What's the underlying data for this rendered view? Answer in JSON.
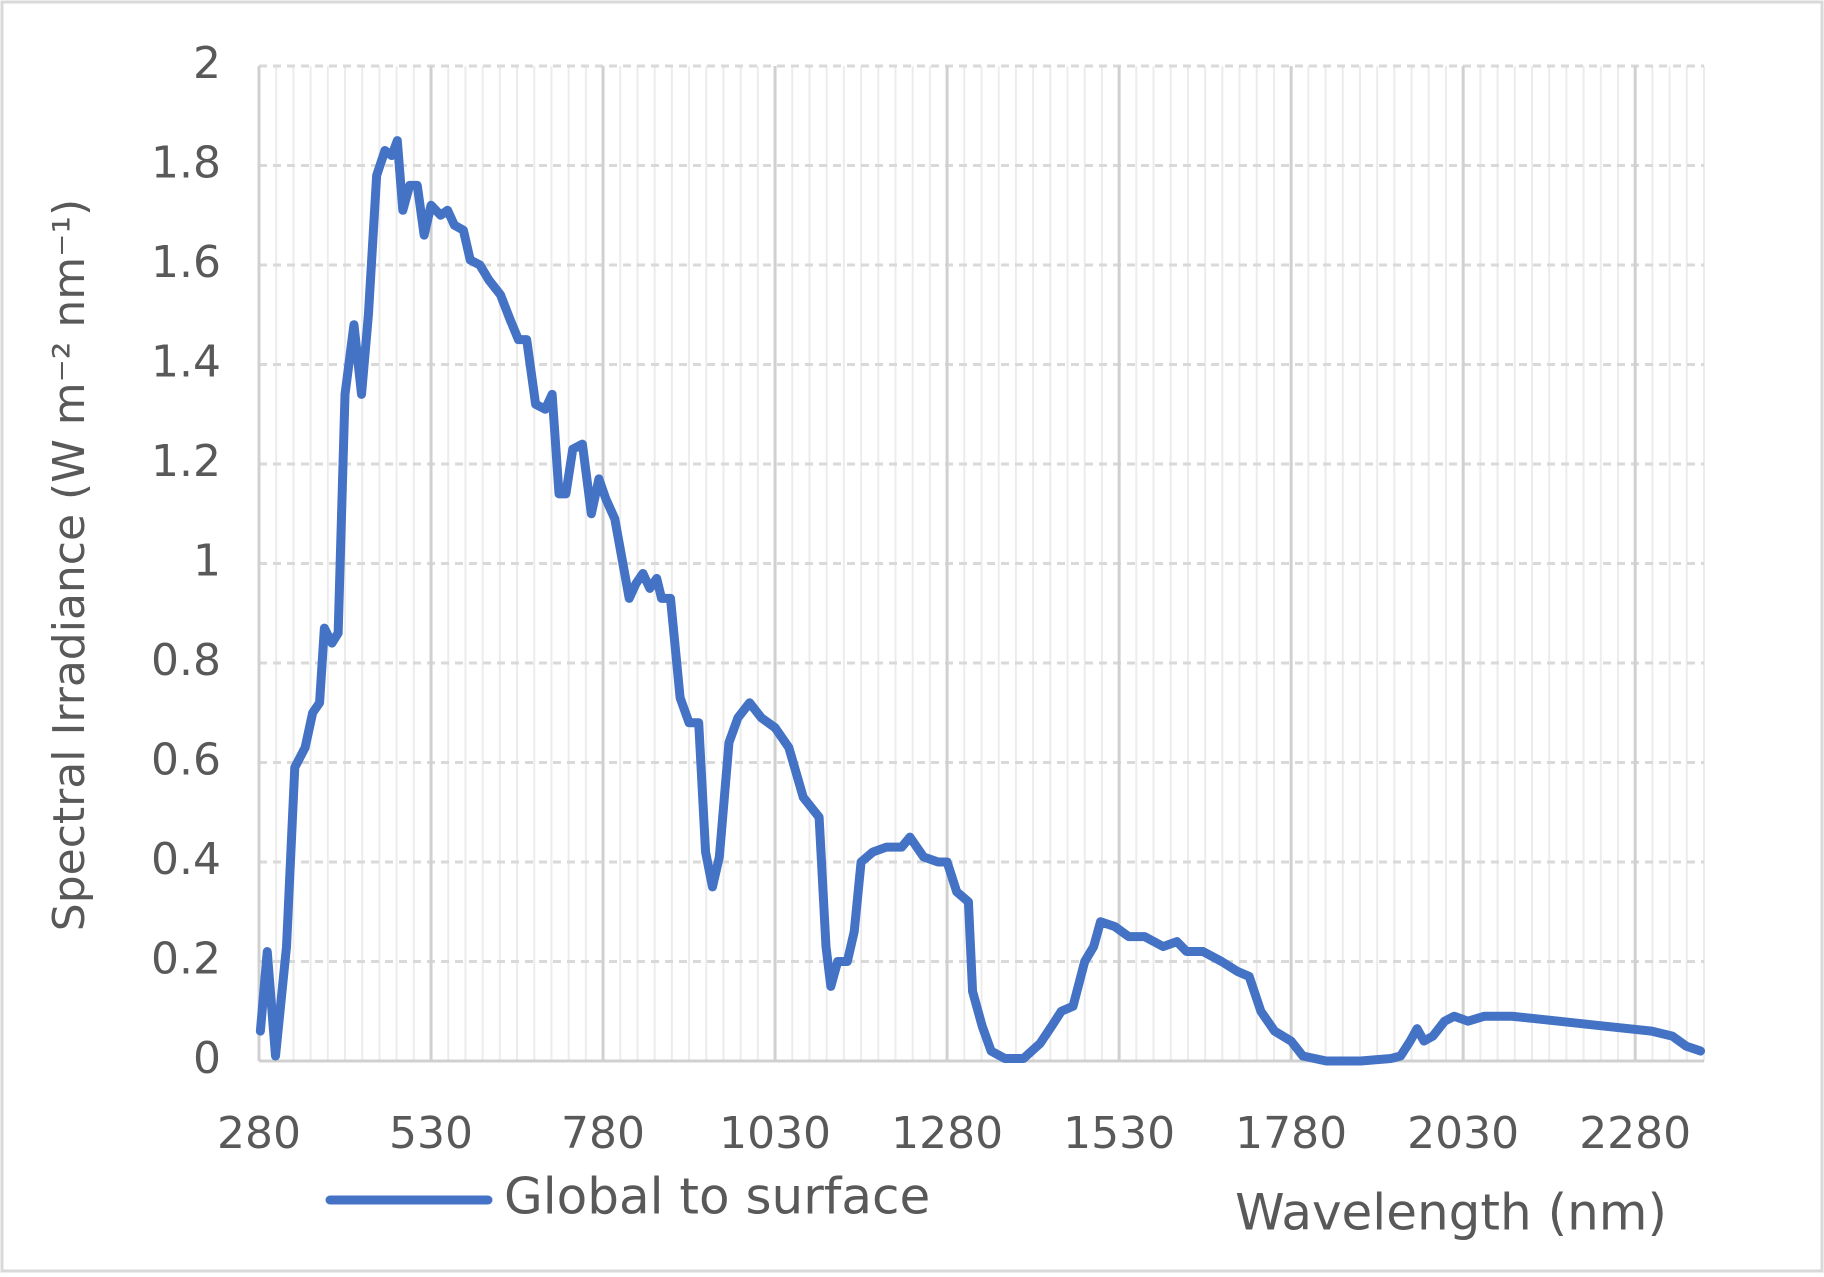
{
  "chart_data": {
    "type": "line",
    "y_label": "Spectral Irradiance (W m⁻² nm⁻¹)",
    "x_label": "Wavelength (nm)",
    "xlim": [
      280,
      2380
    ],
    "xticks": [
      280,
      530,
      780,
      1030,
      1280,
      1530,
      1780,
      2030,
      2280
    ],
    "ylim": [
      0,
      2
    ],
    "yticks": [
      0,
      0.2,
      0.4,
      0.6,
      0.8,
      1,
      1.2,
      1.4,
      1.6,
      1.8,
      2
    ],
    "grid": true,
    "minor_grid": true,
    "legend": "bottom-left",
    "x": [
      282,
      292,
      304,
      320,
      332,
      347,
      358,
      368,
      375,
      386,
      395,
      405,
      418,
      429,
      439,
      451,
      463,
      473,
      481,
      489,
      499,
      510,
      520,
      530,
      544,
      554,
      564,
      577,
      587,
      601,
      614,
      631,
      645,
      657,
      669,
      682,
      696,
      706,
      716,
      726,
      736,
      750,
      763,
      774,
      784,
      797,
      818,
      828,
      838,
      848,
      858,
      865,
      878,
      892,
      905,
      919,
      929,
      939,
      949,
      963,
      976,
      993,
      1010,
      1030,
      1050,
      1071,
      1094,
      1104,
      1111,
      1121,
      1135,
      1145,
      1155,
      1172,
      1192,
      1214,
      1226,
      1246,
      1267,
      1280,
      1294,
      1311,
      1317,
      1331,
      1344,
      1364,
      1391,
      1415,
      1432,
      1446,
      1463,
      1480,
      1493,
      1503,
      1524,
      1544,
      1567,
      1594,
      1614,
      1628,
      1652,
      1679,
      1702,
      1719,
      1736,
      1756,
      1780,
      1797,
      1831,
      1881,
      1925,
      1939,
      1953,
      1963,
      1973,
      1986,
      2003,
      2017,
      2037,
      2061,
      2101,
      2169,
      2236,
      2304,
      2334,
      2354,
      2375
    ],
    "series": [
      {
        "name": "Global to surface",
        "color": "#4472c4",
        "values": [
          0.06,
          0.22,
          0.01,
          0.23,
          0.59,
          0.63,
          0.7,
          0.72,
          0.87,
          0.84,
          0.86,
          1.34,
          1.48,
          1.34,
          1.5,
          1.78,
          1.83,
          1.82,
          1.85,
          1.71,
          1.76,
          1.76,
          1.66,
          1.72,
          1.7,
          1.71,
          1.68,
          1.67,
          1.61,
          1.6,
          1.57,
          1.54,
          1.49,
          1.45,
          1.45,
          1.32,
          1.31,
          1.34,
          1.14,
          1.14,
          1.23,
          1.24,
          1.1,
          1.17,
          1.13,
          1.09,
          0.93,
          0.96,
          0.98,
          0.95,
          0.97,
          0.93,
          0.93,
          0.73,
          0.68,
          0.68,
          0.42,
          0.35,
          0.41,
          0.64,
          0.69,
          0.72,
          0.69,
          0.67,
          0.63,
          0.53,
          0.49,
          0.23,
          0.15,
          0.2,
          0.2,
          0.26,
          0.4,
          0.42,
          0.43,
          0.43,
          0.45,
          0.41,
          0.4,
          0.4,
          0.34,
          0.32,
          0.14,
          0.07,
          0.02,
          0.005,
          0.005,
          0.035,
          0.07,
          0.1,
          0.11,
          0.2,
          0.23,
          0.28,
          0.27,
          0.25,
          0.25,
          0.23,
          0.24,
          0.22,
          0.22,
          0.2,
          0.18,
          0.17,
          0.1,
          0.06,
          0.04,
          0.01,
          0,
          0,
          0.005,
          0.01,
          0.04,
          0.065,
          0.04,
          0.05,
          0.08,
          0.09,
          0.08,
          0.09,
          0.09,
          0.08,
          0.07,
          0.06,
          0.05,
          0.03,
          0.02
        ]
      }
    ]
  }
}
